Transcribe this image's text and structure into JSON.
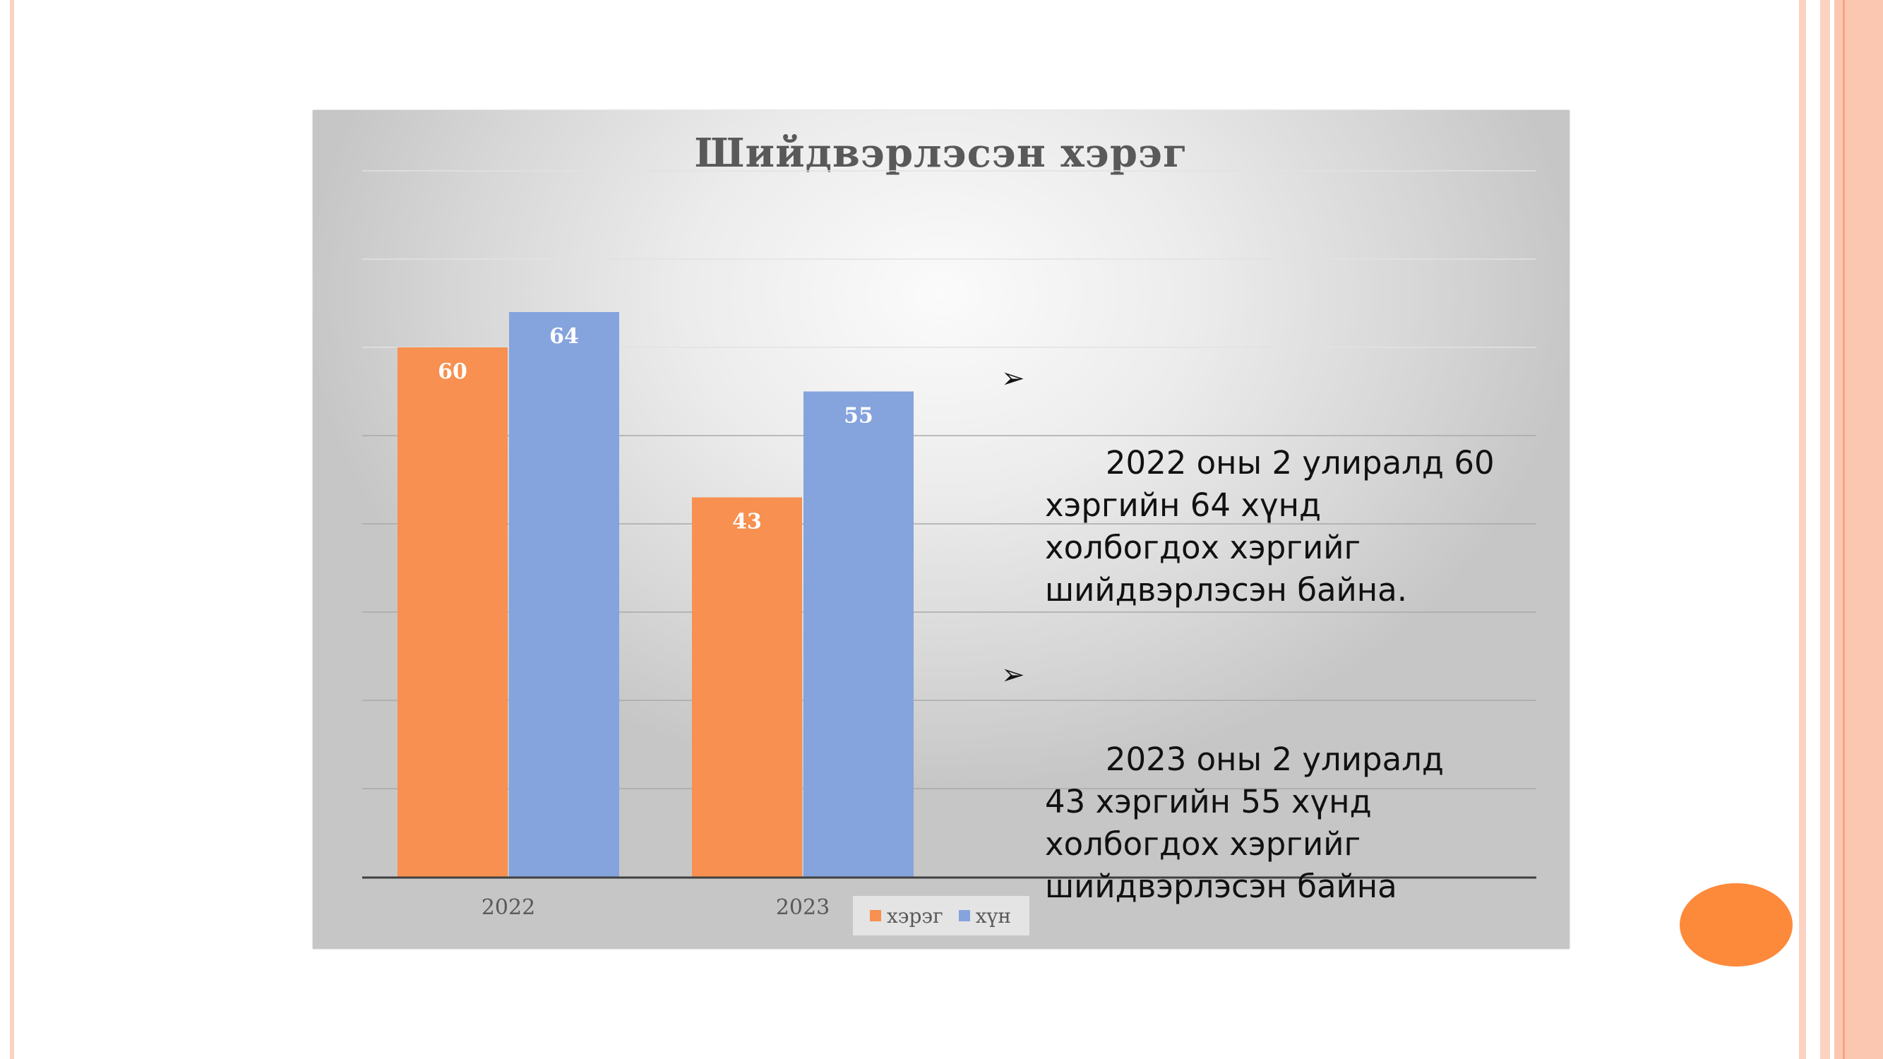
{
  "colors": {
    "series_1": "#f79050",
    "series_2": "#85a3dd",
    "accent_circle": "#fd8a3b",
    "stripe_light": "#fbd3c0",
    "stripe_mid": "#f8b89e"
  },
  "chart_data": {
    "type": "bar",
    "title": "Шийдвэрлэсэн хэрэг",
    "categories": [
      "2022",
      "2023"
    ],
    "series": [
      {
        "name": "хэрэг",
        "values": [
          60,
          43
        ]
      },
      {
        "name": "хүн",
        "values": [
          64,
          55
        ]
      }
    ],
    "ylim": [
      0,
      80
    ],
    "grid": true,
    "legend": "bottom",
    "data_labels": true
  },
  "notes": [
    {
      "bullet": "➢",
      "text": "2022 оны 2 улиралд 60 хэргийн 64 хүнд холбогдох хэргийг шийдвэрлэсэн байна."
    },
    {
      "bullet": "➢",
      "text": "2023 оны 2 улиралд   43 хэргийн 55 хүнд холбогдох хэргийг шийдвэрлэсэн байна"
    }
  ]
}
